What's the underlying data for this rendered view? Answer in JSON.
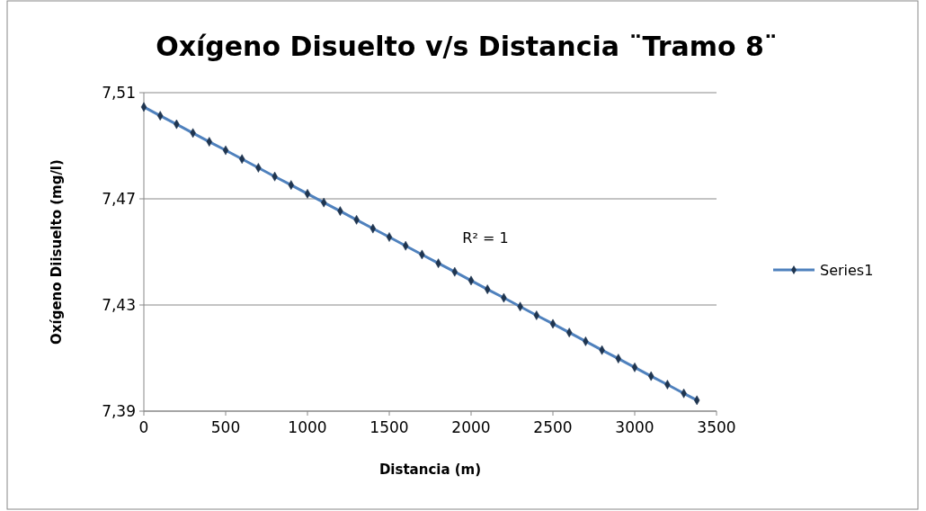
{
  "chart_data": {
    "type": "line",
    "title": "Oxígeno Disuelto v/s Distancia ¨Tramo 8¨",
    "xlabel": "Distancia (m)",
    "ylabel": "Oxígeno Diisuelto (mg/l)",
    "x": [
      0,
      100,
      200,
      300,
      400,
      500,
      600,
      700,
      800,
      900,
      1000,
      1100,
      1200,
      1300,
      1400,
      1500,
      1600,
      1700,
      1800,
      1900,
      2000,
      2100,
      2200,
      2300,
      2400,
      2500,
      2600,
      2700,
      2800,
      2900,
      3000,
      3100,
      3200,
      3300,
      3380
    ],
    "series": [
      {
        "name": "Series1",
        "color": "#4f81bd",
        "values": [
          7.5046,
          7.5013,
          7.4981,
          7.4948,
          7.4915,
          7.4883,
          7.485,
          7.4817,
          7.4784,
          7.4752,
          7.4719,
          7.4686,
          7.4654,
          7.4621,
          7.4588,
          7.4556,
          7.4523,
          7.449,
          7.4457,
          7.4425,
          7.4392,
          7.4359,
          7.4327,
          7.4294,
          7.4261,
          7.4229,
          7.4196,
          7.4163,
          7.413,
          7.4098,
          7.4065,
          7.4032,
          7.4,
          7.3967,
          7.3941
        ]
      }
    ],
    "xlim": [
      0,
      3500
    ],
    "xticks": [
      0,
      500,
      1000,
      1500,
      2000,
      2500,
      3000,
      3500
    ],
    "ylim": [
      7.39,
      7.51
    ],
    "yticks": [
      {
        "value": 7.39,
        "label": "7,39"
      },
      {
        "value": 7.43,
        "label": "7,43"
      },
      {
        "value": 7.47,
        "label": "7,47"
      },
      {
        "value": 7.51,
        "label": "7,51"
      }
    ],
    "annotations": [
      "R² = 1"
    ],
    "grid": "y",
    "legend": "right",
    "marker": "diamond",
    "line_style": "solid"
  }
}
